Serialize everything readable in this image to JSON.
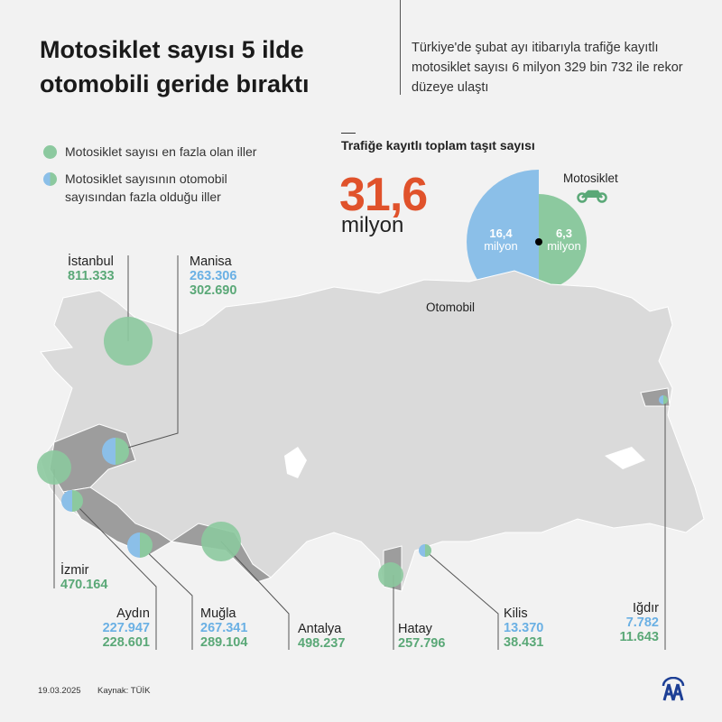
{
  "title": {
    "line1": "Motosiklet sayısı 5 ilde",
    "line2": "otomobili geride bıraktı"
  },
  "intro": "Türkiye'de şubat ayı itibarıyla trafiğe kayıtlı motosiklet sayısı 6 milyon 329 bin 732 ile rekor düzeye ulaştı",
  "legend": [
    {
      "label": "Motosiklet sayısı en fazla olan iller",
      "color": "#8cc99f"
    },
    {
      "label": "Motosiklet sayısının otomobil sayısından fazla olduğu iller",
      "color": "#8bbfe8"
    }
  ],
  "total": {
    "title": "Trafiğe kayıtlı toplam taşıt sayısı",
    "value": "31,6",
    "unit": "milyon",
    "color": "#e0522b"
  },
  "vehicles": {
    "car": {
      "label": "Otomobil",
      "value": "16,4",
      "unit": "milyon",
      "color": "#8bbfe8",
      "icon": "car-icon"
    },
    "moto": {
      "label": "Motosiklet",
      "value": "6,3",
      "unit": "milyon",
      "color": "#8cc99f",
      "icon": "motorcycle-icon"
    }
  },
  "provinces": {
    "istanbul": {
      "name": "İstanbul",
      "moto": "811.333"
    },
    "manisa": {
      "name": "Manisa",
      "car": "263.306",
      "moto": "302.690"
    },
    "izmir": {
      "name": "İzmir",
      "moto": "470.164"
    },
    "aydin": {
      "name": "Aydın",
      "car": "227.947",
      "moto": "228.601"
    },
    "mugla": {
      "name": "Muğla",
      "car": "267.341",
      "moto": "289.104"
    },
    "antalya": {
      "name": "Antalya",
      "moto": "498.237"
    },
    "hatay": {
      "name": "Hatay",
      "moto": "257.796"
    },
    "kilis": {
      "name": "Kilis",
      "car": "13.370",
      "moto": "38.431"
    },
    "igdir": {
      "name": "Iğdır",
      "car": "7.782",
      "moto": "11.643"
    }
  },
  "footer": {
    "date": "19.03.2025",
    "source": "Kaynak: TÜİK",
    "logo": "AA"
  }
}
